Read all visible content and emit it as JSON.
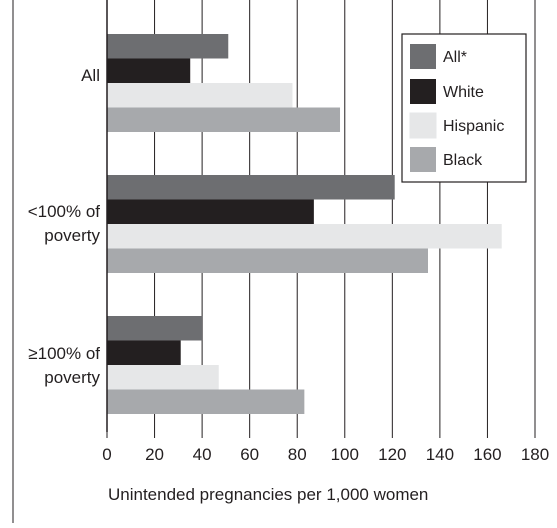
{
  "chart_data": {
    "type": "bar",
    "orientation": "horizontal",
    "categories": [
      [
        "All"
      ],
      [
        "<100% of",
        "poverty"
      ],
      [
        "≥100% of",
        "poverty"
      ]
    ],
    "series": [
      {
        "name": "All*",
        "values": [
          51,
          121,
          40
        ],
        "color": "#6d6e71"
      },
      {
        "name": "White",
        "values": [
          35,
          87,
          31
        ],
        "color": "#231f20"
      },
      {
        "name": "Hispanic",
        "values": [
          78,
          166,
          47
        ],
        "color": "#e6e7e8"
      },
      {
        "name": "Black",
        "values": [
          98,
          135,
          83
        ],
        "color": "#a7a9ac"
      }
    ],
    "xlabel": "Unintended pregnancies per 1,000 women",
    "xlim": [
      0,
      180
    ],
    "xticks": [
      0,
      20,
      40,
      60,
      80,
      100,
      120,
      140,
      160,
      180
    ],
    "grid": "vertical",
    "legend_position": "top-right"
  }
}
